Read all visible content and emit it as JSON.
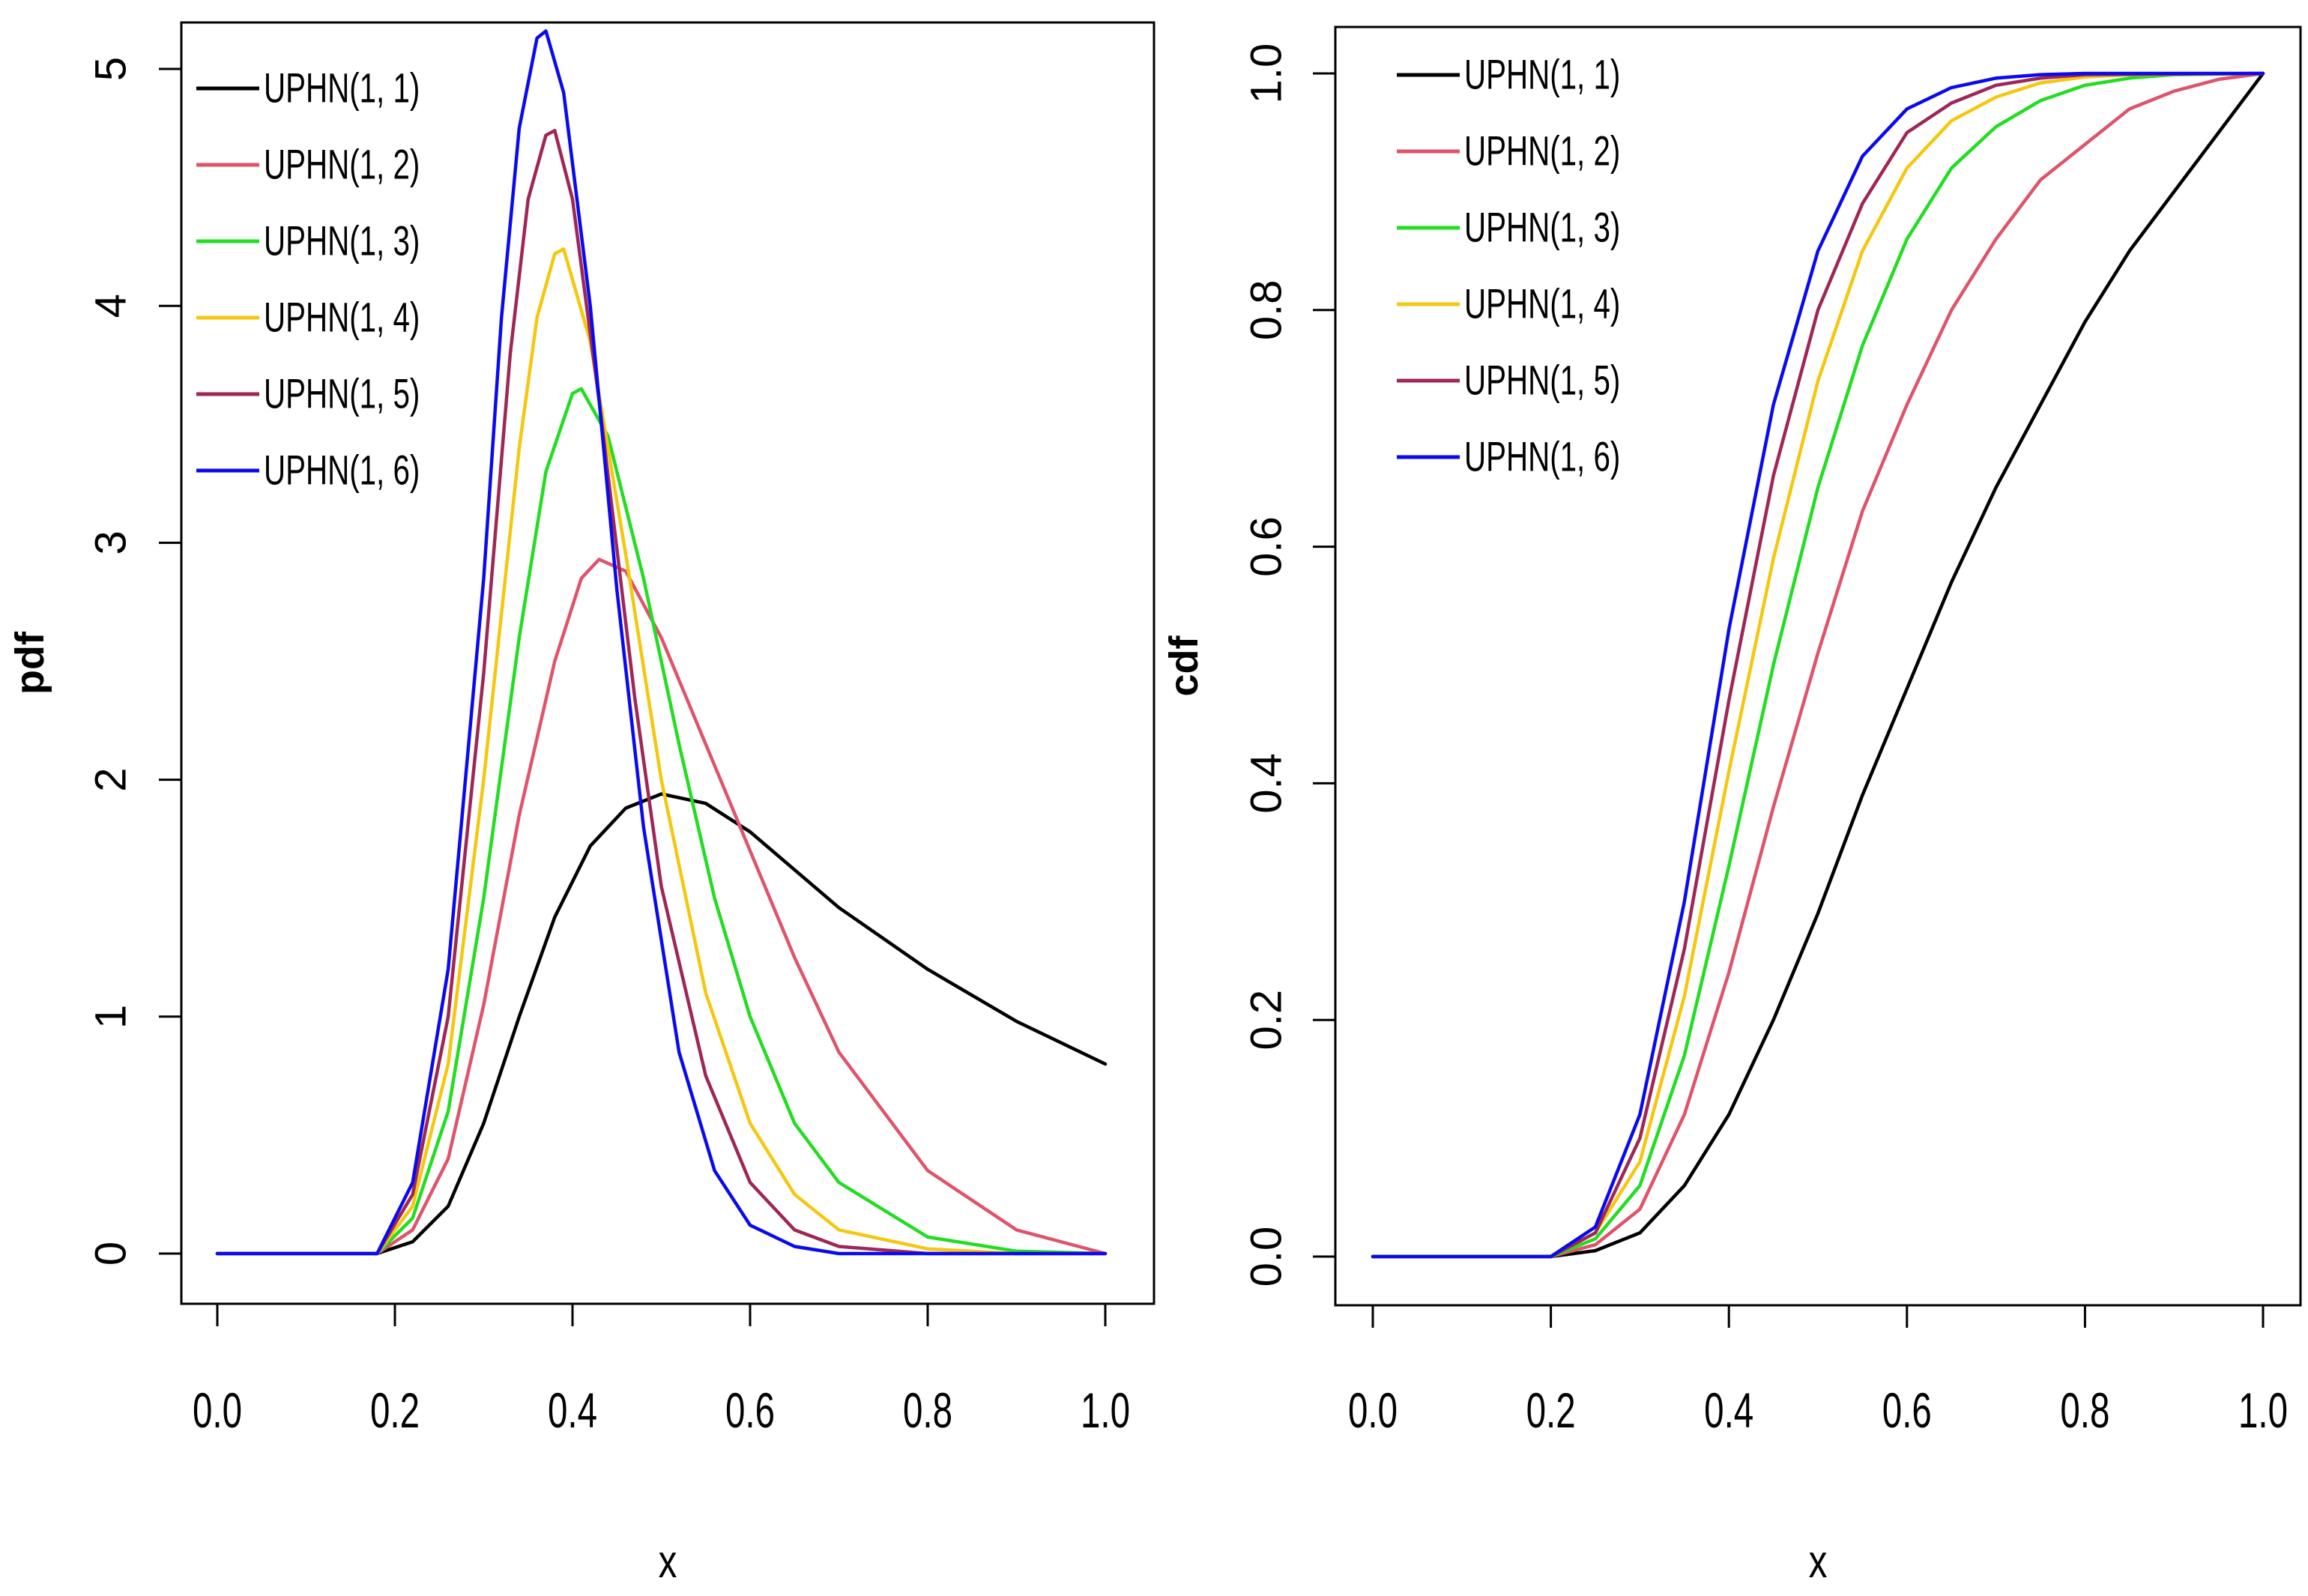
{
  "chart_data": [
    {
      "type": "line",
      "id": "pdf",
      "xlabel": "x",
      "ylabel": "pdf",
      "xlim": [
        0.0,
        1.0
      ],
      "ylim": [
        -0.2,
        5.2
      ],
      "xticks": [
        "0.0",
        "0.2",
        "0.4",
        "0.6",
        "0.8",
        "1.0"
      ],
      "yticks": [
        "0",
        "1",
        "2",
        "3",
        "4",
        "5"
      ],
      "legend_position": "top-left",
      "series": [
        {
          "name": "UPHN(1, 1)",
          "color": "#000000",
          "x": [
            0.0,
            0.18,
            0.22,
            0.26,
            0.3,
            0.34,
            0.38,
            0.42,
            0.46,
            0.5,
            0.55,
            0.6,
            0.65,
            0.7,
            0.8,
            0.9,
            1.0
          ],
          "y": [
            0.0,
            0.0,
            0.05,
            0.2,
            0.55,
            1.0,
            1.42,
            1.72,
            1.88,
            1.94,
            1.9,
            1.78,
            1.62,
            1.46,
            1.2,
            0.98,
            0.8
          ]
        },
        {
          "name": "UPHN(1, 2)",
          "color": "#DF536B",
          "x": [
            0.0,
            0.18,
            0.22,
            0.26,
            0.3,
            0.34,
            0.38,
            0.41,
            0.43,
            0.46,
            0.5,
            0.55,
            0.6,
            0.65,
            0.7,
            0.8,
            0.9,
            1.0
          ],
          "y": [
            0.0,
            0.0,
            0.1,
            0.4,
            1.05,
            1.85,
            2.5,
            2.85,
            2.93,
            2.88,
            2.6,
            2.15,
            1.7,
            1.25,
            0.85,
            0.35,
            0.1,
            0.0
          ]
        },
        {
          "name": "UPHN(1, 3)",
          "color": "#22DD22",
          "x": [
            0.0,
            0.18,
            0.22,
            0.26,
            0.3,
            0.34,
            0.37,
            0.4,
            0.41,
            0.44,
            0.48,
            0.52,
            0.56,
            0.6,
            0.65,
            0.7,
            0.8,
            0.9,
            1.0
          ],
          "y": [
            0.0,
            0.0,
            0.15,
            0.6,
            1.5,
            2.6,
            3.3,
            3.63,
            3.65,
            3.45,
            2.85,
            2.15,
            1.5,
            1.0,
            0.55,
            0.3,
            0.07,
            0.01,
            0.0
          ]
        },
        {
          "name": "UPHN(1, 4)",
          "color": "#F5C710",
          "x": [
            0.0,
            0.18,
            0.22,
            0.26,
            0.3,
            0.34,
            0.36,
            0.38,
            0.39,
            0.42,
            0.46,
            0.5,
            0.55,
            0.6,
            0.65,
            0.7,
            0.8,
            0.9,
            1.0
          ],
          "y": [
            0.0,
            0.0,
            0.2,
            0.8,
            2.0,
            3.4,
            3.95,
            4.22,
            4.24,
            3.85,
            2.95,
            2.0,
            1.1,
            0.55,
            0.25,
            0.1,
            0.02,
            0.0,
            0.0
          ]
        },
        {
          "name": "UPHN(1, 5)",
          "color": "#9E2755",
          "x": [
            0.0,
            0.18,
            0.22,
            0.26,
            0.3,
            0.33,
            0.35,
            0.37,
            0.38,
            0.4,
            0.43,
            0.47,
            0.5,
            0.55,
            0.6,
            0.65,
            0.7,
            0.8,
            1.0
          ],
          "y": [
            0.0,
            0.0,
            0.25,
            1.0,
            2.45,
            3.8,
            4.45,
            4.72,
            4.74,
            4.45,
            3.6,
            2.35,
            1.55,
            0.75,
            0.3,
            0.1,
            0.03,
            0.0,
            0.0
          ]
        },
        {
          "name": "UPHN(1, 6)",
          "color": "#0A0AF0",
          "x": [
            0.0,
            0.18,
            0.22,
            0.26,
            0.3,
            0.32,
            0.34,
            0.36,
            0.37,
            0.39,
            0.42,
            0.45,
            0.48,
            0.52,
            0.56,
            0.6,
            0.65,
            0.7,
            0.8,
            1.0
          ],
          "y": [
            0.0,
            0.0,
            0.3,
            1.2,
            2.85,
            3.95,
            4.75,
            5.13,
            5.16,
            4.9,
            4.0,
            2.8,
            1.8,
            0.85,
            0.35,
            0.12,
            0.03,
            0.0,
            0.0,
            0.0
          ]
        }
      ]
    },
    {
      "type": "line",
      "id": "cdf",
      "xlabel": "x",
      "ylabel": "cdf",
      "xlim": [
        0.0,
        1.0
      ],
      "ylim": [
        -0.04,
        1.04
      ],
      "xticks": [
        "0.0",
        "0.2",
        "0.4",
        "0.6",
        "0.8",
        "1.0"
      ],
      "yticks": [
        "0.0",
        "0.2",
        "0.4",
        "0.6",
        "0.8",
        "1.0"
      ],
      "legend_position": "top-left",
      "series": [
        {
          "name": "UPHN(1, 1)",
          "color": "#000000",
          "x": [
            0.0,
            0.2,
            0.25,
            0.3,
            0.35,
            0.4,
            0.45,
            0.5,
            0.55,
            0.6,
            0.65,
            0.7,
            0.75,
            0.8,
            0.85,
            0.9,
            0.95,
            1.0
          ],
          "y": [
            0.0,
            0.0,
            0.005,
            0.02,
            0.06,
            0.12,
            0.2,
            0.29,
            0.39,
            0.48,
            0.57,
            0.65,
            0.72,
            0.79,
            0.85,
            0.9,
            0.95,
            1.0
          ]
        },
        {
          "name": "UPHN(1, 2)",
          "color": "#DF536B",
          "x": [
            0.0,
            0.2,
            0.25,
            0.3,
            0.35,
            0.4,
            0.45,
            0.5,
            0.55,
            0.6,
            0.65,
            0.7,
            0.75,
            0.8,
            0.85,
            0.9,
            0.95,
            1.0
          ],
          "y": [
            0.0,
            0.0,
            0.01,
            0.04,
            0.12,
            0.24,
            0.38,
            0.51,
            0.63,
            0.72,
            0.8,
            0.86,
            0.91,
            0.94,
            0.97,
            0.985,
            0.995,
            1.0
          ]
        },
        {
          "name": "UPHN(1, 3)",
          "color": "#22DD22",
          "x": [
            0.0,
            0.2,
            0.25,
            0.3,
            0.35,
            0.4,
            0.45,
            0.5,
            0.55,
            0.6,
            0.65,
            0.7,
            0.75,
            0.8,
            0.85,
            0.9,
            1.0
          ],
          "y": [
            0.0,
            0.0,
            0.015,
            0.06,
            0.17,
            0.33,
            0.5,
            0.65,
            0.77,
            0.86,
            0.92,
            0.955,
            0.977,
            0.99,
            0.996,
            0.999,
            1.0
          ]
        },
        {
          "name": "UPHN(1, 4)",
          "color": "#F5C710",
          "x": [
            0.0,
            0.2,
            0.25,
            0.3,
            0.35,
            0.4,
            0.45,
            0.5,
            0.55,
            0.6,
            0.65,
            0.7,
            0.75,
            0.8,
            0.85,
            1.0
          ],
          "y": [
            0.0,
            0.0,
            0.02,
            0.08,
            0.22,
            0.41,
            0.59,
            0.74,
            0.85,
            0.92,
            0.96,
            0.98,
            0.992,
            0.997,
            0.999,
            1.0
          ]
        },
        {
          "name": "UPHN(1, 5)",
          "color": "#9E2755",
          "x": [
            0.0,
            0.2,
            0.25,
            0.3,
            0.35,
            0.4,
            0.45,
            0.5,
            0.55,
            0.6,
            0.65,
            0.7,
            0.75,
            0.8,
            1.0
          ],
          "y": [
            0.0,
            0.0,
            0.02,
            0.1,
            0.26,
            0.47,
            0.66,
            0.8,
            0.89,
            0.95,
            0.975,
            0.99,
            0.996,
            0.999,
            1.0
          ]
        },
        {
          "name": "UPHN(1, 6)",
          "color": "#0A0AF0",
          "x": [
            0.0,
            0.2,
            0.25,
            0.3,
            0.35,
            0.4,
            0.45,
            0.5,
            0.55,
            0.6,
            0.65,
            0.7,
            0.75,
            0.8,
            1.0
          ],
          "y": [
            0.0,
            0.0,
            0.025,
            0.12,
            0.3,
            0.53,
            0.72,
            0.85,
            0.93,
            0.97,
            0.988,
            0.996,
            0.999,
            1.0,
            1.0
          ]
        }
      ]
    }
  ]
}
